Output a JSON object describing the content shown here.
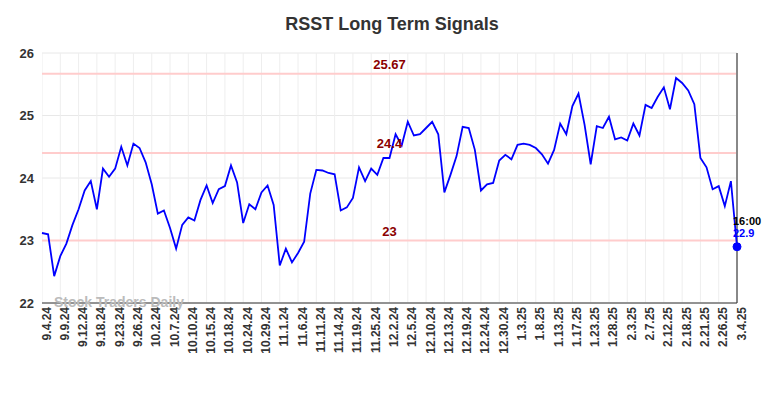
{
  "chart_data": {
    "type": "line",
    "title": "RSST Long Term Signals",
    "watermark": "Stock Traders Daily",
    "categories": [
      "9.4.24",
      null,
      null,
      "9.9.24",
      null,
      null,
      "9.12.24",
      null,
      null,
      "9.18.24",
      null,
      null,
      "9.23.24",
      null,
      null,
      "9.26.24",
      null,
      null,
      "10.2.24",
      null,
      null,
      "10.7.24",
      null,
      null,
      "10.10.24",
      null,
      null,
      "10.15.24",
      null,
      null,
      "10.18.24",
      null,
      null,
      "10.24.24",
      null,
      null,
      "10.29.24",
      null,
      null,
      "11.1.24",
      null,
      null,
      "11.6.24",
      null,
      null,
      "11.11.24",
      null,
      null,
      "11.14.24",
      null,
      null,
      "11.19.24",
      null,
      null,
      "11.25.24",
      null,
      null,
      "12.2.24",
      null,
      null,
      "12.5.24",
      null,
      null,
      "12.10.24",
      null,
      null,
      "12.13.24",
      null,
      null,
      "12.19.24",
      null,
      null,
      "12.24.24",
      null,
      null,
      "12.30.24",
      null,
      null,
      "1.3.25",
      null,
      null,
      "1.8.25",
      null,
      null,
      "1.13.25",
      null,
      null,
      "1.17.25",
      null,
      null,
      "1.23.25",
      null,
      null,
      "1.28.25",
      null,
      null,
      "2.3.25",
      null,
      null,
      "2.7.25",
      null,
      null,
      "2.12.25",
      null,
      null,
      "2.18.25",
      null,
      null,
      "2.21.25",
      null,
      null,
      "2.26.25",
      null,
      null,
      "3.4.25"
    ],
    "values": [
      23.12,
      23.1,
      22.43,
      22.75,
      22.95,
      23.25,
      23.5,
      23.8,
      23.95,
      23.5,
      24.15,
      24.02,
      24.15,
      24.5,
      24.2,
      24.55,
      24.48,
      24.25,
      23.9,
      23.43,
      23.48,
      23.2,
      22.87,
      23.25,
      23.37,
      23.32,
      23.65,
      23.88,
      23.6,
      23.82,
      23.87,
      24.2,
      23.93,
      23.28,
      23.58,
      23.5,
      23.77,
      23.88,
      23.57,
      22.6,
      22.87,
      22.65,
      22.8,
      22.98,
      23.75,
      24.13,
      24.12,
      24.08,
      24.06,
      23.48,
      23.53,
      23.68,
      24.17,
      23.95,
      24.15,
      24.05,
      24.32,
      24.32,
      24.7,
      24.52,
      24.9,
      24.68,
      24.7,
      24.8,
      24.9,
      24.7,
      23.77,
      24.05,
      24.35,
      24.82,
      24.8,
      24.45,
      23.8,
      23.9,
      23.92,
      24.28,
      24.37,
      24.3,
      24.53,
      24.55,
      24.53,
      24.48,
      24.38,
      24.23,
      24.45,
      24.87,
      24.7,
      25.15,
      25.35,
      24.85,
      24.22,
      24.83,
      24.8,
      24.98,
      24.62,
      24.65,
      24.6,
      24.87,
      24.68,
      25.17,
      25.12,
      25.3,
      25.45,
      25.1,
      25.6,
      25.52,
      25.4,
      25.18,
      24.32,
      24.17,
      23.82,
      23.87,
      23.55,
      23.95,
      22.9
    ],
    "color": "#0000ff",
    "ylim": [
      22,
      26
    ],
    "yticks": [
      22,
      23,
      24,
      25,
      26
    ],
    "grid": true,
    "annotations": [
      {
        "value": 25.67,
        "label": "25.67"
      },
      {
        "value": 24.4,
        "label": "24.4"
      },
      {
        "value": 23,
        "label": "23"
      }
    ],
    "end_label": {
      "time": "16:00",
      "value": 22.9
    }
  }
}
